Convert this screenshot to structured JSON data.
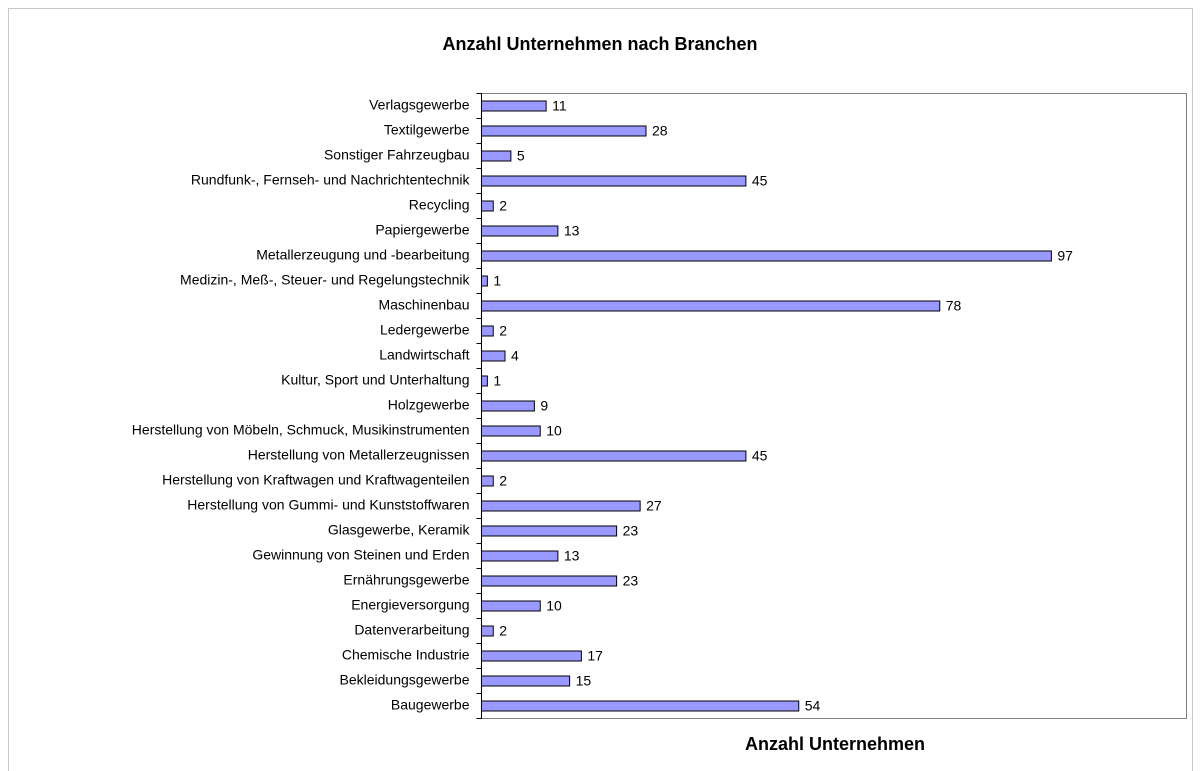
{
  "chart_data": {
    "type": "bar",
    "orientation": "horizontal",
    "title": "Anzahl Unternehmen nach Branchen",
    "x_label": "Anzahl Unternehmen",
    "categories": [
      "Verlagsgewerbe",
      "Textilgewerbe",
      "Sonstiger Fahrzeugbau",
      "Rundfunk-, Fernseh- und Nachrichtentechnik",
      "Recycling",
      "Papiergewerbe",
      "Metallerzeugung und -bearbeitung",
      "Medizin-, Meß-, Steuer- und Regelungstechnik",
      "Maschinenbau",
      "Ledergewerbe",
      "Landwirtschaft",
      "Kultur, Sport und Unterhaltung",
      "Holzgewerbe",
      "Herstellung von Möbeln, Schmuck, Musikinstrumenten",
      "Herstellung von Metallerzeugnissen",
      "Herstellung von Kraftwagen und Kraftwagenteilen",
      "Herstellung von Gummi- und Kunststoffwaren",
      "Glasgewerbe, Keramik",
      "Gewinnung von Steinen und Erden",
      "Ernährungsgewerbe",
      "Energieversorgung",
      "Datenverarbeitung",
      "Chemische Industrie",
      "Bekleidungsgewerbe",
      "Baugewerbe"
    ],
    "values": [
      11,
      28,
      5,
      45,
      2,
      13,
      97,
      1,
      78,
      2,
      4,
      1,
      9,
      10,
      45,
      2,
      27,
      23,
      13,
      23,
      10,
      2,
      17,
      15,
      54
    ],
    "color": "#9999ff",
    "xlim": [
      0,
      120
    ]
  }
}
